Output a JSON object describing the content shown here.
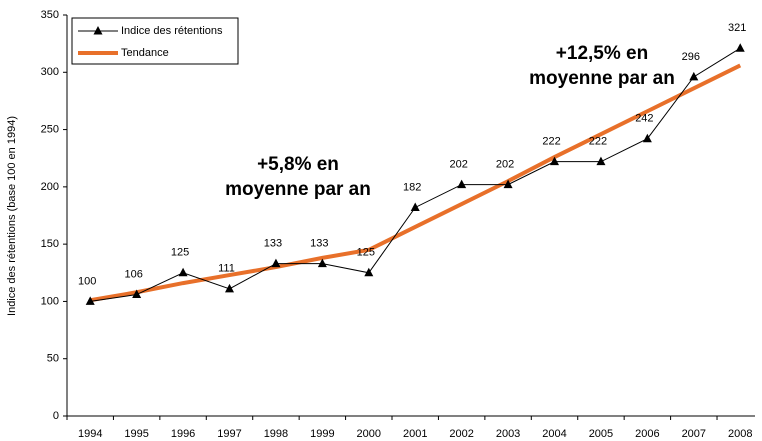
{
  "chart_data": {
    "type": "line",
    "y_label": "Indice des rétentions (base 100 en 1994)",
    "categories": [
      "1994",
      "1995",
      "1996",
      "1997",
      "1998",
      "1999",
      "2000",
      "2001",
      "2002",
      "2003",
      "2004",
      "2005",
      "2006",
      "2007",
      "2008"
    ],
    "series": [
      {
        "name": "Indice des rétentions",
        "color": "#000000",
        "marker": "triangle",
        "values": [
          100,
          106,
          125,
          111,
          133,
          133,
          125,
          182,
          202,
          202,
          222,
          222,
          242,
          296,
          321
        ]
      },
      {
        "name": "Tendance",
        "color": "#e8702a",
        "values": [
          101,
          108,
          116,
          123,
          130,
          138,
          145,
          165,
          185,
          205,
          226,
          246,
          266,
          286,
          306
        ]
      }
    ],
    "annotations": [
      {
        "lines": [
          "+5,8% en",
          "moyenne par an"
        ]
      },
      {
        "lines": [
          "+12,5% en",
          "moyenne par an"
        ]
      }
    ],
    "ylim": [
      0,
      350
    ],
    "yticks": [
      0,
      50,
      100,
      150,
      200,
      250,
      300,
      350
    ],
    "legend": "upper left"
  }
}
